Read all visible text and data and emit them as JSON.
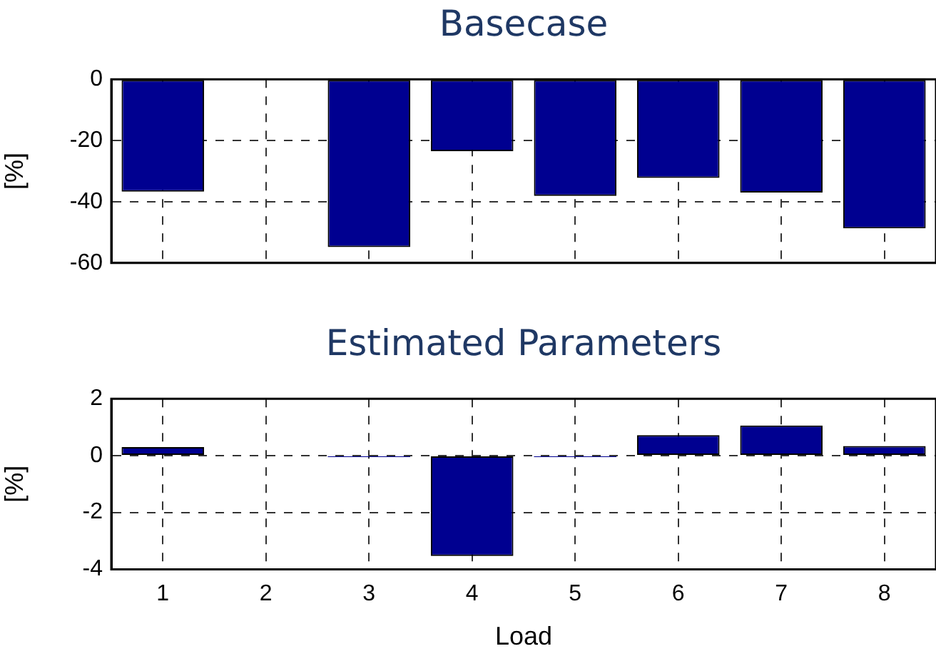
{
  "chart_data": [
    {
      "type": "bar",
      "title": "Basecase",
      "ylabel": "[%]",
      "categories": [
        "1",
        "2",
        "3",
        "4",
        "5",
        "6",
        "7",
        "8"
      ],
      "values": [
        -36.7,
        0,
        -54.8,
        -23.5,
        -38.1,
        -32.2,
        -37,
        -48.7
      ],
      "color": "#000090",
      "ylim": [
        -60,
        0
      ],
      "yticks": [
        -60,
        -40,
        -20,
        0
      ],
      "grid": true,
      "tick_labels": "y"
    },
    {
      "type": "bar",
      "title": "Estimated Parameters",
      "ylabel": "[%]",
      "xlabel": "Load",
      "categories": [
        "1",
        "2",
        "3",
        "4",
        "5",
        "6",
        "7",
        "8"
      ],
      "values": [
        0.3,
        null,
        -0.05,
        -3.53,
        -0.05,
        0.72,
        1.06,
        0.34
      ],
      "color": "#000090",
      "ylim": [
        -4,
        2
      ],
      "yticks": [
        -4,
        -2,
        0,
        2
      ],
      "grid": true
    }
  ]
}
